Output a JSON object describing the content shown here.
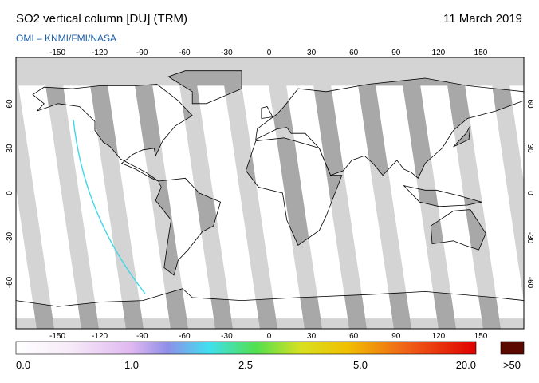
{
  "header": {
    "title": "SO2 vertical column [DU] (TRM)",
    "date": "11 March 2019",
    "source": "OMI  –  KNMI/FMI/NASA"
  },
  "map": {
    "lon_labels": [
      "-150",
      "-120",
      "-90",
      "-60",
      "-30",
      "0",
      "30",
      "60",
      "90",
      "120",
      "150"
    ],
    "lat_labels": [
      "60",
      "30",
      "0",
      "-30",
      "-60"
    ]
  },
  "colorbar": {
    "labels": [
      "0.0",
      "1.0",
      "2.5",
      "5.0",
      "20.0"
    ],
    "overflow_label": ">50"
  }
}
